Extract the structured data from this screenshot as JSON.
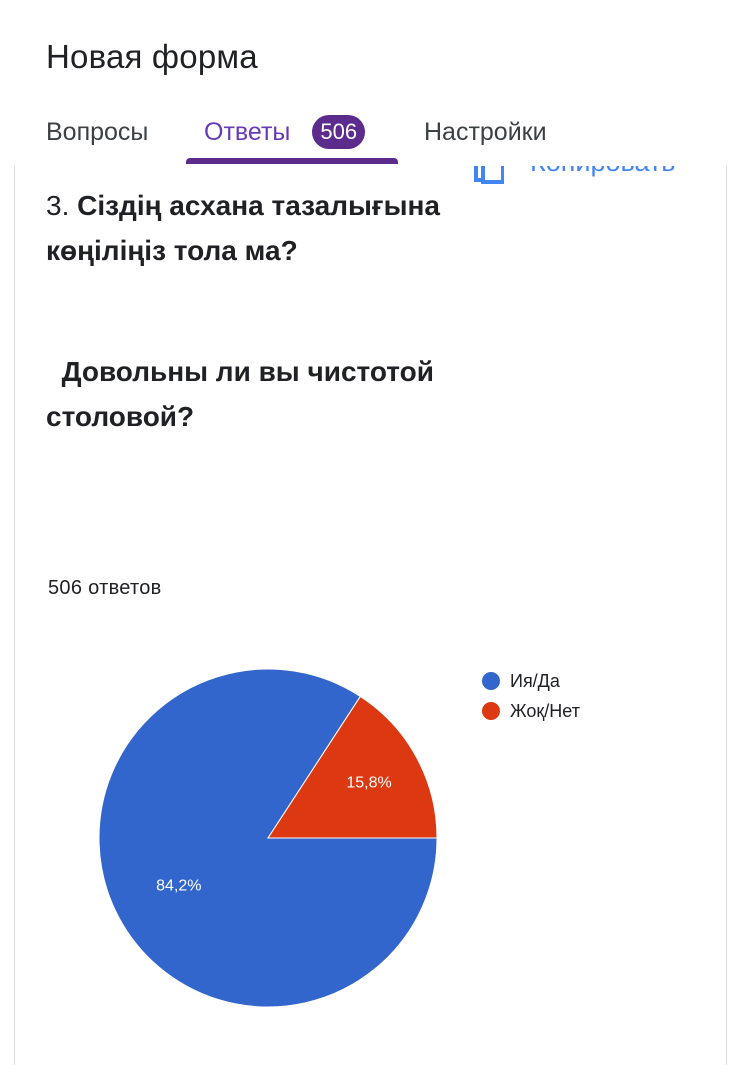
{
  "header": {
    "form_title": "Новая форма"
  },
  "tabs": {
    "questions_label": "Вопросы",
    "responses_label": "Ответы",
    "responses_badge": "506",
    "settings_label": "Настройки"
  },
  "toolbar": {
    "copy_label": "Копировать"
  },
  "question": {
    "number": "3.",
    "text_kk": "Сіздің асхана тазалығына көңіліңіз тола ма?",
    "text_ru": "  Довольны ли вы чистотой столовой?",
    "responses_count": "506 ответов"
  },
  "colors": {
    "accent": "#673ab7",
    "badge": "#5b2c8b",
    "yes": "#3366cc",
    "no": "#dc3912"
  },
  "chart_data": {
    "type": "pie",
    "categories": [
      "Ия/Да",
      "Жоқ/Нет"
    ],
    "values": [
      84.2,
      15.8
    ],
    "labels": [
      "84,2%",
      "15,8%"
    ],
    "colors": [
      "#3366cc",
      "#dc3912"
    ],
    "legend_position": "right"
  }
}
